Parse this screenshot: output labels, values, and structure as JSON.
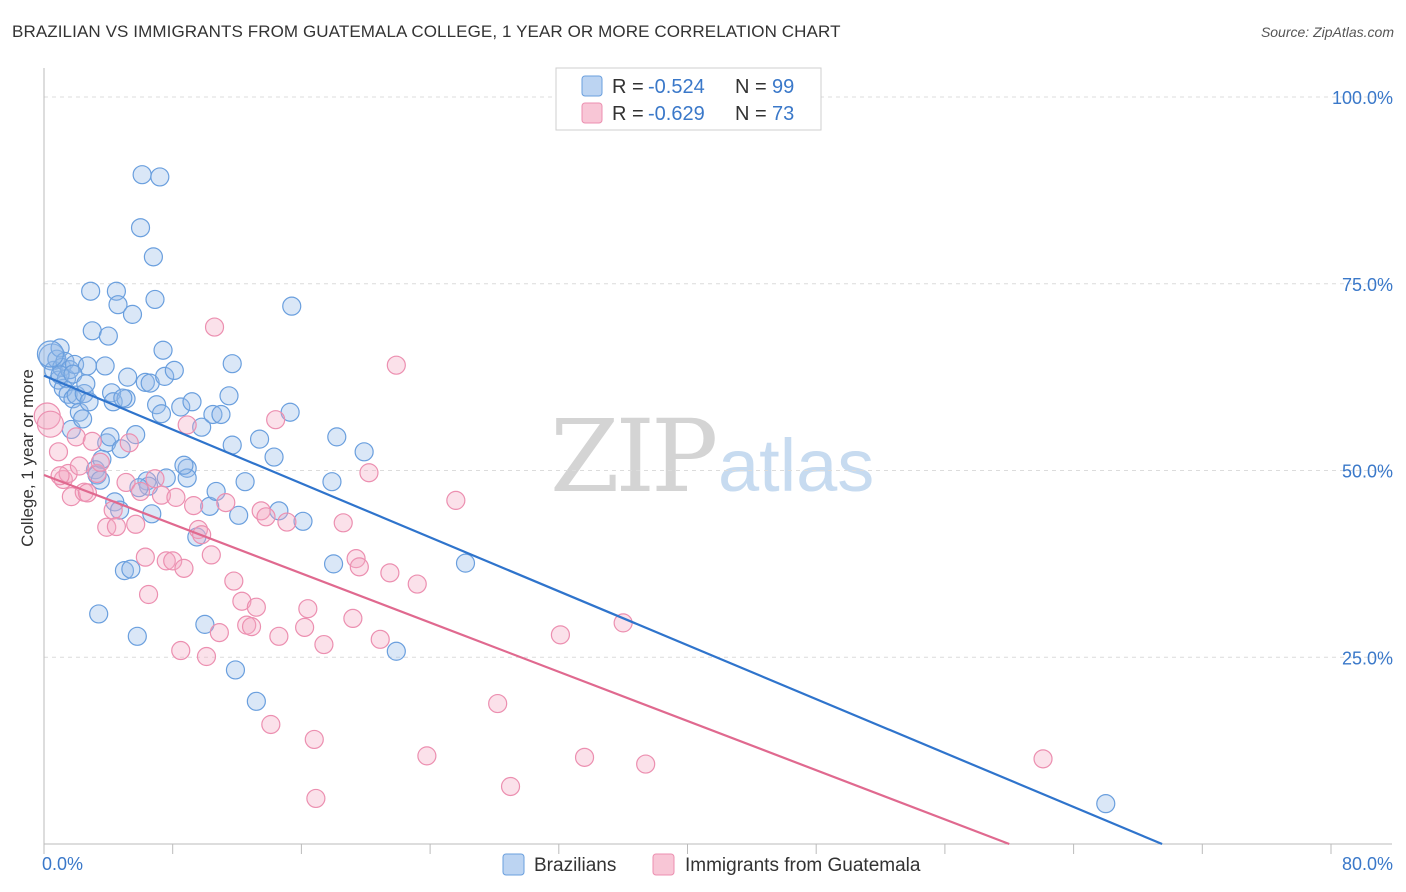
{
  "title": "BRAZILIAN VS IMMIGRANTS FROM GUATEMALA COLLEGE, 1 YEAR OR MORE CORRELATION CHART",
  "source": "Source: ZipAtlas.com",
  "watermark": {
    "zip": "ZIP",
    "atlas": "atlas"
  },
  "colors": {
    "blue": "#6a9fde",
    "blue_line": "#2f74cc",
    "pink": "#ec8fb0",
    "pink_line": "#e0698f",
    "tick_text": "#3a78c9"
  },
  "legend": {
    "r_label": "R =",
    "n_label": "N =",
    "rows": [
      {
        "r": "-0.524",
        "n": "99"
      },
      {
        "r": "-0.629",
        "n": "73"
      }
    ]
  },
  "chart_data": {
    "type": "scatter",
    "title": "BRAZILIAN VS IMMIGRANTS FROM GUATEMALA COLLEGE, 1 YEAR OR MORE CORRELATION CHART",
    "xlabel": "",
    "ylabel": "College, 1 year or more",
    "xlim": [
      0,
      80
    ],
    "ylim": [
      0,
      100
    ],
    "x_tick_labels": [
      "0.0%",
      "80.0%"
    ],
    "y_tick_labels": [
      "100.0%",
      "75.0%",
      "50.0%",
      "25.0%"
    ],
    "y_ticks": [
      100,
      75,
      50,
      25
    ],
    "grid": true,
    "legend_position": "bottom",
    "series": [
      {
        "name": "Brazilians",
        "trend": {
          "x": [
            0,
            69.5
          ],
          "y": [
            62.7,
            0
          ]
        },
        "points": [
          [
            0.5,
            65.2
          ],
          [
            0.6,
            63.4
          ],
          [
            0.8,
            64.9
          ],
          [
            0.9,
            62.1
          ],
          [
            1.0,
            66.4
          ],
          [
            1.1,
            63.8
          ],
          [
            1.2,
            61.0
          ],
          [
            1.3,
            64.6
          ],
          [
            1.4,
            62.3
          ],
          [
            1.5,
            60.2
          ],
          [
            1.6,
            63.5
          ],
          [
            1.7,
            55.5
          ],
          [
            1.8,
            59.6
          ],
          [
            1.9,
            64.2
          ],
          [
            2.0,
            60.1
          ],
          [
            2.2,
            57.8
          ],
          [
            2.4,
            56.9
          ],
          [
            2.5,
            60.3
          ],
          [
            2.7,
            64.0
          ],
          [
            2.8,
            59.2
          ],
          [
            2.9,
            74.0
          ],
          [
            3.0,
            68.7
          ],
          [
            3.2,
            50.1
          ],
          [
            3.3,
            49.4
          ],
          [
            3.4,
            30.8
          ],
          [
            3.5,
            48.7
          ],
          [
            3.8,
            64.0
          ],
          [
            3.9,
            53.7
          ],
          [
            4.0,
            68.0
          ],
          [
            4.1,
            54.5
          ],
          [
            4.2,
            60.4
          ],
          [
            4.3,
            59.2
          ],
          [
            4.4,
            45.8
          ],
          [
            4.5,
            74.0
          ],
          [
            4.6,
            72.2
          ],
          [
            4.7,
            44.7
          ],
          [
            4.8,
            52.9
          ],
          [
            5.0,
            36.6
          ],
          [
            5.1,
            59.6
          ],
          [
            5.2,
            62.5
          ],
          [
            5.4,
            36.8
          ],
          [
            5.5,
            70.9
          ],
          [
            5.7,
            54.8
          ],
          [
            5.8,
            27.8
          ],
          [
            6.0,
            82.5
          ],
          [
            6.1,
            89.6
          ],
          [
            6.3,
            61.8
          ],
          [
            6.4,
            48.6
          ],
          [
            6.5,
            47.9
          ],
          [
            6.6,
            61.7
          ],
          [
            6.7,
            44.2
          ],
          [
            6.8,
            78.6
          ],
          [
            6.9,
            72.9
          ],
          [
            7.0,
            58.8
          ],
          [
            7.2,
            89.3
          ],
          [
            7.4,
            66.1
          ],
          [
            7.5,
            62.6
          ],
          [
            7.6,
            49.0
          ],
          [
            8.1,
            63.4
          ],
          [
            8.5,
            58.5
          ],
          [
            8.9,
            50.3
          ],
          [
            8.9,
            49.0
          ],
          [
            9.2,
            59.2
          ],
          [
            9.5,
            41.1
          ],
          [
            9.8,
            55.8
          ],
          [
            10.0,
            29.4
          ],
          [
            10.3,
            45.2
          ],
          [
            10.5,
            57.5
          ],
          [
            11.0,
            57.5
          ],
          [
            11.5,
            60.0
          ],
          [
            11.7,
            64.3
          ],
          [
            11.7,
            53.4
          ],
          [
            11.9,
            23.3
          ],
          [
            12.1,
            44.0
          ],
          [
            13.2,
            19.1
          ],
          [
            13.4,
            54.2
          ],
          [
            14.3,
            51.8
          ],
          [
            15.4,
            72.0
          ],
          [
            15.3,
            57.8
          ],
          [
            17.9,
            48.5
          ],
          [
            18.0,
            37.5
          ],
          [
            18.2,
            54.5
          ],
          [
            19.9,
            52.5
          ],
          [
            21.9,
            25.8
          ],
          [
            26.2,
            37.6
          ],
          [
            66.0,
            5.4
          ],
          [
            0.4,
            65.6
          ],
          [
            1.0,
            62.8
          ],
          [
            1.8,
            62.9
          ],
          [
            2.6,
            61.6
          ],
          [
            3.6,
            51.5
          ],
          [
            4.9,
            59.7
          ],
          [
            5.9,
            47.7
          ],
          [
            7.3,
            57.6
          ],
          [
            8.7,
            50.7
          ],
          [
            10.7,
            47.2
          ],
          [
            12.5,
            48.5
          ],
          [
            14.6,
            44.6
          ],
          [
            16.1,
            43.2
          ]
        ]
      },
      {
        "name": "Immigrants from Guatemala",
        "trend": {
          "x": [
            0,
            60
          ],
          "y": [
            49.4,
            0
          ]
        },
        "points": [
          [
            0.2,
            57.3
          ],
          [
            0.4,
            56.2
          ],
          [
            0.9,
            52.5
          ],
          [
            1.2,
            48.8
          ],
          [
            1.5,
            49.6
          ],
          [
            1.7,
            46.5
          ],
          [
            2.0,
            54.5
          ],
          [
            2.2,
            50.6
          ],
          [
            2.5,
            47.1
          ],
          [
            2.7,
            47.0
          ],
          [
            3.0,
            53.9
          ],
          [
            3.3,
            49.6
          ],
          [
            3.5,
            51.1
          ],
          [
            3.9,
            42.4
          ],
          [
            4.3,
            44.7
          ],
          [
            4.5,
            42.5
          ],
          [
            5.1,
            48.4
          ],
          [
            5.3,
            53.7
          ],
          [
            5.7,
            42.8
          ],
          [
            6.0,
            47.2
          ],
          [
            6.3,
            38.4
          ],
          [
            6.5,
            33.4
          ],
          [
            7.3,
            46.7
          ],
          [
            7.6,
            37.9
          ],
          [
            8.0,
            37.9
          ],
          [
            8.2,
            46.4
          ],
          [
            8.5,
            25.9
          ],
          [
            8.7,
            36.9
          ],
          [
            8.9,
            56.1
          ],
          [
            9.3,
            45.3
          ],
          [
            9.6,
            42.1
          ],
          [
            9.8,
            41.4
          ],
          [
            10.1,
            25.1
          ],
          [
            10.4,
            38.7
          ],
          [
            10.6,
            69.2
          ],
          [
            10.9,
            28.3
          ],
          [
            11.3,
            45.7
          ],
          [
            11.8,
            35.2
          ],
          [
            12.3,
            32.5
          ],
          [
            12.6,
            29.3
          ],
          [
            12.9,
            29.1
          ],
          [
            13.2,
            31.7
          ],
          [
            13.5,
            44.6
          ],
          [
            14.1,
            16.0
          ],
          [
            14.4,
            56.8
          ],
          [
            14.6,
            27.8
          ],
          [
            15.1,
            43.1
          ],
          [
            16.2,
            29.0
          ],
          [
            16.4,
            31.5
          ],
          [
            16.8,
            14.0
          ],
          [
            16.9,
            6.1
          ],
          [
            17.4,
            26.7
          ],
          [
            18.6,
            43.0
          ],
          [
            19.2,
            30.2
          ],
          [
            19.4,
            38.2
          ],
          [
            19.6,
            37.1
          ],
          [
            20.2,
            49.7
          ],
          [
            20.9,
            27.4
          ],
          [
            21.5,
            36.3
          ],
          [
            21.9,
            64.1
          ],
          [
            23.2,
            34.8
          ],
          [
            23.8,
            11.8
          ],
          [
            25.6,
            46.0
          ],
          [
            28.2,
            18.8
          ],
          [
            29.0,
            7.7
          ],
          [
            32.1,
            28.0
          ],
          [
            33.6,
            11.6
          ],
          [
            36.0,
            29.6
          ],
          [
            37.4,
            10.7
          ],
          [
            62.1,
            11.4
          ],
          [
            1.0,
            49.3
          ],
          [
            6.9,
            48.9
          ],
          [
            13.8,
            43.8
          ]
        ]
      }
    ]
  },
  "bottom_legend": [
    {
      "label": "Brazilians"
    },
    {
      "label": "Immigrants from Guatemala"
    }
  ]
}
